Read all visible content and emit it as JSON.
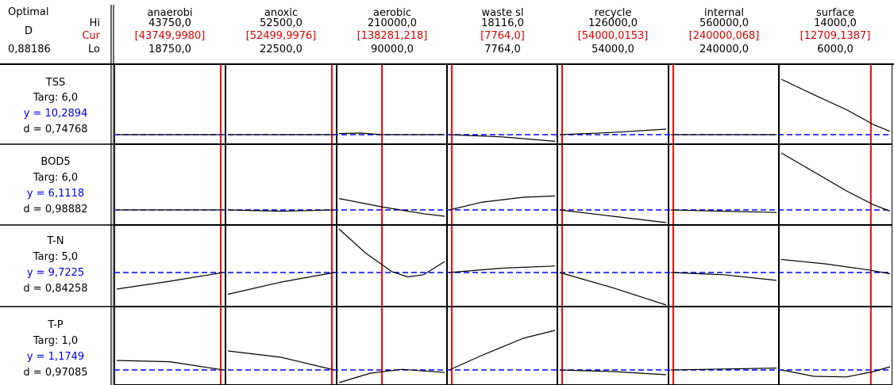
{
  "header": {
    "optimal_label": "Optimal",
    "d_label": "D",
    "d_value": "0,88186",
    "hi_label": "Hi",
    "cur_label": "Cur",
    "lo_label": "Lo"
  },
  "colors": {
    "current_line": "#ff0000",
    "target_line": "#0000ff",
    "curve": "#000000",
    "cur_text": "#e00000",
    "y_text": "#0000ee"
  },
  "columns": [
    {
      "name": "anaerobi",
      "hi": "43750,0",
      "cur": "[43749,9980]",
      "lo": "18750,0"
    },
    {
      "name": "anoxic",
      "hi": "52500,0",
      "cur": "[52499,9976]",
      "lo": "22500,0"
    },
    {
      "name": "aerobic",
      "hi": "210000,0",
      "cur": "[138281,218]",
      "lo": "90000,0"
    },
    {
      "name": "waste sl",
      "hi": "18116,0",
      "cur": "[7764,0]",
      "lo": "7764,0"
    },
    {
      "name": "recycle",
      "hi": "126000,0",
      "cur": "[54000,0153]",
      "lo": "54000,0"
    },
    {
      "name": "internal",
      "hi": "560000,0",
      "cur": "[240000,068]",
      "lo": "240000,0"
    },
    {
      "name": "surface",
      "hi": "14000,0",
      "cur": "[12709,1387]",
      "lo": "6000,0"
    }
  ],
  "rows": [
    {
      "name": "TSS",
      "targ": "Targ: 6,0",
      "y": "y = 10,2894",
      "d": "d = 0,74768"
    },
    {
      "name": "BOD5",
      "targ": "Targ: 6,0",
      "y": "y = 6,1118",
      "d": "d = 0,98882"
    },
    {
      "name": "T-N",
      "targ": "Targ: 5,0",
      "y": "y = 9,7225",
      "d": "d = 0,84258"
    },
    {
      "name": "T-P",
      "targ": "Targ: 1,0",
      "y": "y = 1,1749",
      "d": "d = 0,97085"
    }
  ],
  "chart_data": {
    "type": "line",
    "title": "",
    "factors": [
      "anaerobi",
      "anoxic",
      "aerobic",
      "waste sl",
      "recycle",
      "internal",
      "surface"
    ],
    "factor_low": [
      18750.0,
      22500.0,
      90000.0,
      7764.0,
      54000.0,
      240000.0,
      6000.0
    ],
    "factor_high": [
      43750.0,
      52500.0,
      210000.0,
      18116.0,
      126000.0,
      560000.0,
      14000.0
    ],
    "factor_current": [
      43749.998,
      52499.9976,
      138281.218,
      7764.0,
      54000.0153,
      240000.068,
      12709.1387
    ],
    "responses": [
      {
        "name": "TSS",
        "target": 6.0,
        "y": 10.2894,
        "d": 0.74768
      },
      {
        "name": "BOD5",
        "target": 6.0,
        "y": 6.1118,
        "d": 0.98882
      },
      {
        "name": "T-N",
        "target": 5.0,
        "y": 9.7225,
        "d": 0.84258
      },
      {
        "name": "T-P",
        "target": 1.0,
        "y": 1.1749,
        "d": 0.97085
      }
    ],
    "curves": [
      [
        [
          [
            0,
            0
          ],
          [
            1,
            0
          ]
        ],
        [
          [
            0,
            0
          ],
          [
            1,
            0
          ]
        ],
        [
          [
            0,
            -0.02
          ],
          [
            0.2,
            -0.03
          ],
          [
            0.4,
            0
          ],
          [
            1,
            0
          ]
        ],
        [
          [
            0,
            0
          ],
          [
            0.5,
            0.04
          ],
          [
            1,
            0.12
          ]
        ],
        [
          [
            0,
            0
          ],
          [
            0.5,
            -0.04
          ],
          [
            1,
            -0.1
          ]
        ],
        [
          [
            0,
            0
          ],
          [
            1,
            0
          ]
        ],
        [
          [
            0,
            -1.0
          ],
          [
            0.3,
            -0.72
          ],
          [
            0.6,
            -0.45
          ],
          [
            0.85,
            -0.18
          ],
          [
            1,
            -0.06
          ]
        ]
      ],
      [
        [
          [
            0,
            0
          ],
          [
            1,
            0
          ]
        ],
        [
          [
            0,
            0
          ],
          [
            0.5,
            0.02
          ],
          [
            1,
            0
          ]
        ],
        [
          [
            0,
            -0.18
          ],
          [
            0.4,
            -0.05
          ],
          [
            0.8,
            0.06
          ],
          [
            1,
            0.1
          ]
        ],
        [
          [
            0,
            0
          ],
          [
            0.3,
            -0.12
          ],
          [
            0.7,
            -0.2
          ],
          [
            1,
            -0.22
          ]
        ],
        [
          [
            0,
            0
          ],
          [
            0.5,
            0.1
          ],
          [
            1,
            0.2
          ]
        ],
        [
          [
            0,
            0
          ],
          [
            0.5,
            0.02
          ],
          [
            1,
            0.04
          ]
        ],
        [
          [
            0,
            -0.9
          ],
          [
            0.3,
            -0.6
          ],
          [
            0.6,
            -0.3
          ],
          [
            0.85,
            -0.08
          ],
          [
            1,
            0.02
          ]
        ]
      ],
      [
        [
          [
            0,
            0.38
          ],
          [
            0.5,
            0.2
          ],
          [
            1,
            0
          ]
        ],
        [
          [
            0,
            0.5
          ],
          [
            0.5,
            0.22
          ],
          [
            1,
            0
          ]
        ],
        [
          [
            0,
            -1.0
          ],
          [
            0.25,
            -0.45
          ],
          [
            0.5,
            -0.02
          ],
          [
            0.65,
            0.1
          ],
          [
            0.8,
            0.05
          ],
          [
            1,
            -0.25
          ]
        ],
        [
          [
            0,
            0
          ],
          [
            0.5,
            -0.1
          ],
          [
            1,
            -0.15
          ]
        ],
        [
          [
            0,
            0
          ],
          [
            0.5,
            0.35
          ],
          [
            1,
            0.78
          ]
        ],
        [
          [
            0,
            0
          ],
          [
            0.5,
            0.05
          ],
          [
            1,
            0.18
          ]
        ],
        [
          [
            0,
            -0.3
          ],
          [
            0.4,
            -0.2
          ],
          [
            0.8,
            -0.06
          ],
          [
            1,
            0.03
          ]
        ]
      ],
      [
        [
          [
            0,
            -0.3
          ],
          [
            0.5,
            -0.26
          ],
          [
            1,
            0
          ]
        ],
        [
          [
            0,
            -0.6
          ],
          [
            0.5,
            -0.4
          ],
          [
            1,
            0
          ]
        ],
        [
          [
            0,
            0.4
          ],
          [
            0.3,
            0.1
          ],
          [
            0.6,
            -0.02
          ],
          [
            1,
            0.08
          ]
        ],
        [
          [
            0,
            0
          ],
          [
            0.3,
            -0.45
          ],
          [
            0.7,
            -1.0
          ],
          [
            1,
            -1.25
          ]
        ],
        [
          [
            0,
            0
          ],
          [
            0.5,
            0.05
          ],
          [
            1,
            0.15
          ]
        ],
        [
          [
            0,
            0
          ],
          [
            0.5,
            -0.03
          ],
          [
            1,
            -0.06
          ]
        ],
        [
          [
            0,
            0
          ],
          [
            0.3,
            0.2
          ],
          [
            0.6,
            0.22
          ],
          [
            0.85,
            0.05
          ],
          [
            1,
            -0.1
          ]
        ]
      ]
    ]
  }
}
